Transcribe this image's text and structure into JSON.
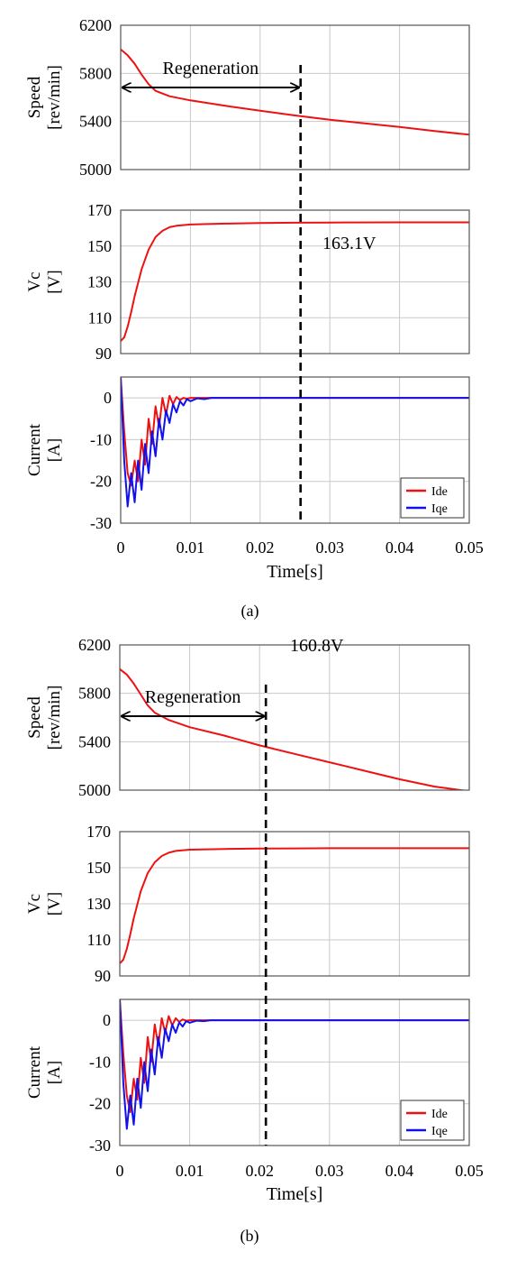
{
  "colors": {
    "ide": "#ee1111",
    "iqe": "#1111ee",
    "grid": "#c9c9c9",
    "axis": "#555555",
    "text": "#000000"
  },
  "chart_data": [
    {
      "panel": "a",
      "caption": "(a)",
      "type": "line",
      "xlabel": "Time[s]",
      "x_ticks": [
        "0",
        "0.01",
        "0.02",
        "0.03",
        "0.04",
        "0.05"
      ],
      "xlim": [
        0,
        0.05
      ],
      "marker_time": 0.0258,
      "subplots": [
        {
          "key": "speed",
          "ylabel": [
            "Speed",
            "[rev/min]"
          ],
          "ylim": [
            5000,
            6200
          ],
          "y_ticks": [
            5000,
            5400,
            5800,
            6200
          ],
          "grid": true,
          "annotation": "Regeneration",
          "series": [
            {
              "color_key": "ide",
              "x": [
                0,
                0.001,
                0.002,
                0.003,
                0.004,
                0.005,
                0.007,
                0.01,
                0.015,
                0.02,
                0.025,
                0.03,
                0.035,
                0.04,
                0.045,
                0.05
              ],
              "y": [
                6000,
                5950,
                5880,
                5790,
                5710,
                5655,
                5610,
                5575,
                5530,
                5490,
                5450,
                5415,
                5385,
                5355,
                5320,
                5290
              ]
            }
          ]
        },
        {
          "key": "vc",
          "ylabel": [
            "Vc",
            "[V]"
          ],
          "ylim": [
            90,
            170
          ],
          "y_ticks": [
            90,
            110,
            130,
            150,
            170
          ],
          "grid": true,
          "annotation": "163.1V",
          "series": [
            {
              "color_key": "ide",
              "x": [
                0,
                0.0005,
                0.001,
                0.0015,
                0.002,
                0.003,
                0.004,
                0.005,
                0.006,
                0.007,
                0.008,
                0.01,
                0.015,
                0.02,
                0.025,
                0.03,
                0.04,
                0.05
              ],
              "y": [
                97,
                99,
                105,
                113,
                122,
                137,
                148,
                155,
                158.5,
                160.5,
                161.3,
                162,
                162.5,
                162.8,
                163,
                163.1,
                163.2,
                163.2
              ]
            }
          ]
        },
        {
          "key": "current",
          "ylabel": [
            "Current",
            "[A]"
          ],
          "ylim": [
            -30,
            5
          ],
          "y_ticks": [
            -30,
            -20,
            -10,
            0
          ],
          "grid": true,
          "legend": {
            "position": "bottom-right",
            "entries": [
              {
                "label": "Ide",
                "color_key": "ide"
              },
              {
                "label": "Iqe",
                "color_key": "iqe"
              }
            ]
          },
          "series": [
            {
              "name": "Ide",
              "color_key": "ide",
              "x": [
                0,
                0.0005,
                0.001,
                0.0015,
                0.002,
                0.0025,
                0.003,
                0.0035,
                0.004,
                0.0045,
                0.005,
                0.0055,
                0.006,
                0.0065,
                0.007,
                0.0075,
                0.008,
                0.0085,
                0.009,
                0.0095,
                0.01,
                0.012,
                0.05
              ],
              "y": [
                5,
                -8,
                -18,
                -21,
                -15,
                -20,
                -10,
                -16,
                -5,
                -11,
                -2,
                -7,
                0,
                -4,
                0.5,
                -1.5,
                0.2,
                -0.5,
                0,
                -0.2,
                0,
                0,
                0
              ]
            },
            {
              "name": "Iqe",
              "color_key": "iqe",
              "x": [
                0,
                0.0005,
                0.001,
                0.0015,
                0.002,
                0.0025,
                0.003,
                0.0035,
                0.004,
                0.0045,
                0.005,
                0.0055,
                0.006,
                0.0065,
                0.007,
                0.0075,
                0.008,
                0.0085,
                0.009,
                0.0095,
                0.01,
                0.011,
                0.012,
                0.013,
                0.015,
                0.05
              ],
              "y": [
                5,
                -15,
                -26,
                -18,
                -25,
                -15,
                -22,
                -11,
                -18,
                -8,
                -14,
                -5,
                -10,
                -3,
                -6,
                -1.5,
                -3.5,
                -0.8,
                -1.8,
                -0.3,
                -0.8,
                -0.1,
                -0.3,
                0,
                0,
                0
              ]
            }
          ]
        }
      ]
    },
    {
      "panel": "b",
      "caption": "(b)",
      "type": "line",
      "xlabel": "Time[s]",
      "x_ticks": [
        "0",
        "0.01",
        "0.02",
        "0.03",
        "0.04",
        "0.05"
      ],
      "xlim": [
        0,
        0.05
      ],
      "marker_time": 0.0209,
      "subplots": [
        {
          "key": "speed",
          "ylabel": [
            "Speed",
            "[rev/min]"
          ],
          "ylim": [
            5000,
            6200
          ],
          "y_ticks": [
            5000,
            5400,
            5800,
            6200
          ],
          "grid": true,
          "annotation": "Regeneration",
          "series": [
            {
              "color_key": "ide",
              "x": [
                0,
                0.001,
                0.002,
                0.003,
                0.004,
                0.005,
                0.007,
                0.01,
                0.015,
                0.02,
                0.025,
                0.03,
                0.035,
                0.04,
                0.045,
                0.05
              ],
              "y": [
                6000,
                5955,
                5880,
                5790,
                5700,
                5640,
                5580,
                5520,
                5450,
                5370,
                5300,
                5230,
                5160,
                5090,
                5030,
                4990
              ]
            }
          ]
        },
        {
          "key": "vc",
          "ylabel": [
            "Vc",
            "[V]"
          ],
          "ylim": [
            90,
            170
          ],
          "y_ticks": [
            90,
            110,
            130,
            150,
            170
          ],
          "grid": true,
          "annotation": "160.8V",
          "series": [
            {
              "color_key": "ide",
              "x": [
                0,
                0.0005,
                0.001,
                0.0015,
                0.002,
                0.003,
                0.004,
                0.005,
                0.006,
                0.007,
                0.008,
                0.01,
                0.015,
                0.02,
                0.025,
                0.03,
                0.04,
                0.05
              ],
              "y": [
                97,
                99,
                105,
                113,
                122,
                137,
                147,
                153,
                156.5,
                158.3,
                159.3,
                160,
                160.4,
                160.6,
                160.7,
                160.8,
                160.8,
                160.8
              ]
            }
          ]
        },
        {
          "key": "current",
          "ylabel": [
            "Current",
            "[A]"
          ],
          "ylim": [
            -30,
            5
          ],
          "y_ticks": [
            -30,
            -20,
            -10,
            0
          ],
          "grid": true,
          "legend": {
            "position": "bottom-right",
            "entries": [
              {
                "label": "Ide",
                "color_key": "ide"
              },
              {
                "label": "Iqe",
                "color_key": "iqe"
              }
            ]
          },
          "series": [
            {
              "name": "Ide",
              "color_key": "ide",
              "x": [
                0,
                0.0005,
                0.001,
                0.0015,
                0.002,
                0.0025,
                0.003,
                0.0035,
                0.004,
                0.0045,
                0.005,
                0.0055,
                0.006,
                0.0065,
                0.007,
                0.0075,
                0.008,
                0.0085,
                0.009,
                0.0095,
                0.01,
                0.012,
                0.05
              ],
              "y": [
                5,
                -8,
                -18,
                -22,
                -14,
                -19,
                -9,
                -15,
                -4,
                -10,
                -1,
                -6,
                0.5,
                -3,
                1,
                -1.2,
                0.5,
                -0.4,
                0.2,
                -0.1,
                0,
                0,
                0
              ]
            },
            {
              "name": "Iqe",
              "color_key": "iqe",
              "x": [
                0,
                0.0005,
                0.001,
                0.0015,
                0.002,
                0.0025,
                0.003,
                0.0035,
                0.004,
                0.0045,
                0.005,
                0.0055,
                0.006,
                0.0065,
                0.007,
                0.0075,
                0.008,
                0.0085,
                0.009,
                0.0095,
                0.01,
                0.011,
                0.012,
                0.013,
                0.015,
                0.05
              ],
              "y": [
                5,
                -15,
                -26,
                -18,
                -25,
                -14,
                -21,
                -10,
                -17,
                -7,
                -13,
                -4,
                -9,
                -2,
                -5,
                -1,
                -3,
                -0.5,
                -1.5,
                -0.2,
                -0.6,
                -0.1,
                -0.2,
                0,
                0,
                0
              ]
            }
          ]
        }
      ]
    }
  ]
}
